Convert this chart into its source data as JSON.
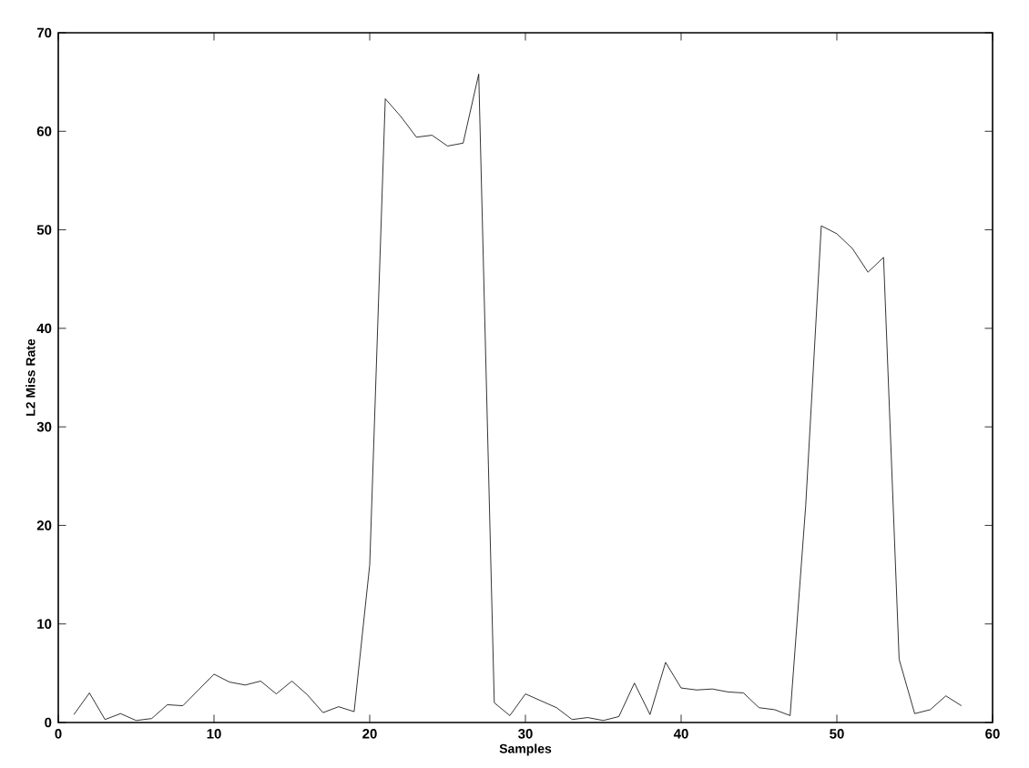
{
  "chart_data": {
    "type": "line",
    "xlabel": "Samples",
    "ylabel": "L2 Miss Rate",
    "x": [
      1,
      2,
      3,
      4,
      5,
      6,
      7,
      8,
      9,
      10,
      11,
      12,
      13,
      14,
      15,
      16,
      17,
      18,
      19,
      20,
      21,
      22,
      23,
      24,
      25,
      26,
      27,
      28,
      29,
      30,
      31,
      32,
      33,
      34,
      35,
      36,
      37,
      38,
      39,
      40,
      41,
      42,
      43,
      44,
      45,
      46,
      47,
      48,
      49,
      50,
      51,
      52,
      53,
      54,
      55,
      56,
      57,
      58
    ],
    "values": [
      0.8,
      3.0,
      0.3,
      0.9,
      0.2,
      0.4,
      1.8,
      1.7,
      3.3,
      4.9,
      4.1,
      3.8,
      4.2,
      2.9,
      4.2,
      2.8,
      1.0,
      1.6,
      1.1,
      16,
      63.3,
      61.5,
      59.4,
      59.6,
      58.5,
      58.8,
      65.8,
      2.0,
      0.7,
      2.9,
      2.2,
      1.5,
      0.3,
      0.5,
      0.2,
      0.6,
      4.0,
      0.8,
      6.1,
      3.5,
      3.3,
      3.4,
      3.1,
      3.0,
      1.5,
      1.3,
      0.7,
      22,
      50.4,
      49.6,
      48.1,
      45.7,
      47.2,
      6.4,
      0.9,
      1.3,
      2.7,
      1.7
    ],
    "color": "#000000",
    "xlim": [
      0,
      60
    ],
    "xticks": [
      0,
      10,
      20,
      30,
      40,
      50,
      60
    ],
    "ylim": [
      0,
      70
    ],
    "yticks": [
      0,
      10,
      20,
      30,
      40,
      50,
      60,
      70
    ],
    "grid": false,
    "marker": "none",
    "line_style": "solid"
  }
}
